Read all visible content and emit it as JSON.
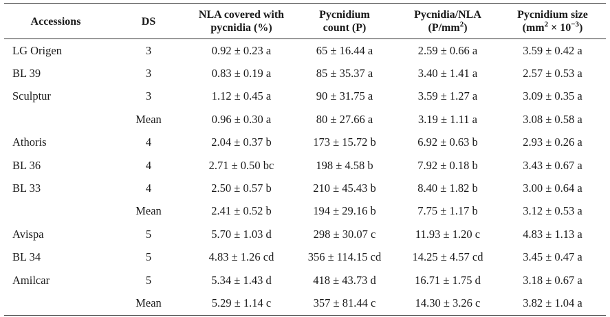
{
  "headers": {
    "accessions": "Accessions",
    "ds": "DS",
    "nla_line1": "NLA covered with",
    "nla_line2": "pycnidia (%)",
    "count_line1": "Pycnidium",
    "count_line2": "count (P)",
    "ratio_line1": "Pycnidia/NLA",
    "ratio_line2": "(P/mm",
    "ratio_sup": "2",
    "ratio_close": ")",
    "size_line1": "Pycnidium size",
    "size_line2": "(mm",
    "size_sup1": "2",
    "size_mid": " × 10",
    "size_sup2": "−3",
    "size_close": ")"
  },
  "rows": [
    {
      "accession": "LG Origen",
      "ds": "3",
      "nla": "0.92 ± 0.23 a",
      "count": "65 ± 16.44 a",
      "ratio": "2.59 ± 0.66 a",
      "size": "3.59 ± 0.42 a"
    },
    {
      "accession": "BL 39",
      "ds": "3",
      "nla": "0.83 ± 0.19 a",
      "count": "85 ± 35.37 a",
      "ratio": "3.40 ± 1.41 a",
      "size": "2.57 ± 0.53 a"
    },
    {
      "accession": "Sculptur",
      "ds": "3",
      "nla": "1.12 ± 0.45 a",
      "count": "90 ± 31.75 a",
      "ratio": "3.59 ± 1.27 a",
      "size": "3.09 ± 0.35 a"
    },
    {
      "accession": "",
      "ds": "Mean",
      "nla": "0.96 ± 0.30 a",
      "count": "80 ± 27.66 a",
      "ratio": "3.19 ± 1.11 a",
      "size": "3.08 ± 0.58 a"
    },
    {
      "accession": "Athoris",
      "ds": "4",
      "nla": "2.04 ± 0.37 b",
      "count": "173 ± 15.72 b",
      "ratio": "6.92 ± 0.63 b",
      "size": "2.93 ± 0.26 a"
    },
    {
      "accession": "BL 36",
      "ds": "4",
      "nla": "2.71 ± 0.50 bc",
      "count": "198 ± 4.58 b",
      "ratio": "7.92 ± 0.18 b",
      "size": "3.43 ± 0.67 a"
    },
    {
      "accession": "BL 33",
      "ds": "4",
      "nla": "2.50 ± 0.57 b",
      "count": "210 ± 45.43 b",
      "ratio": "8.40 ± 1.82 b",
      "size": "3.00 ± 0.64 a"
    },
    {
      "accession": "",
      "ds": "Mean",
      "nla": "2.41 ± 0.52 b",
      "count": "194 ± 29.16 b",
      "ratio": "7.75 ± 1.17 b",
      "size": "3.12 ± 0.53 a"
    },
    {
      "accession": "Avispa",
      "ds": "5",
      "nla": "5.70 ± 1.03 d",
      "count": "298 ± 30.07 c",
      "ratio": "11.93 ± 1.20 c",
      "size": "4.83 ± 1.13 a"
    },
    {
      "accession": "BL 34",
      "ds": "5",
      "nla": "4.83 ± 1.26 cd",
      "count": "356 ± 114.15 cd",
      "ratio": "14.25 ± 4.57 cd",
      "size": "3.45 ± 0.47 a"
    },
    {
      "accession": "Amilcar",
      "ds": "5",
      "nla": "5.34 ± 1.43 d",
      "count": "418 ± 43.73 d",
      "ratio": "16.71 ± 1.75 d",
      "size": "3.18 ± 0.67 a"
    },
    {
      "accession": "",
      "ds": "Mean",
      "nla": "5.29 ± 1.14 c",
      "count": "357 ± 81.44 c",
      "ratio": "14.30 ± 3.26 c",
      "size": "3.82 ± 1.04 a"
    }
  ]
}
